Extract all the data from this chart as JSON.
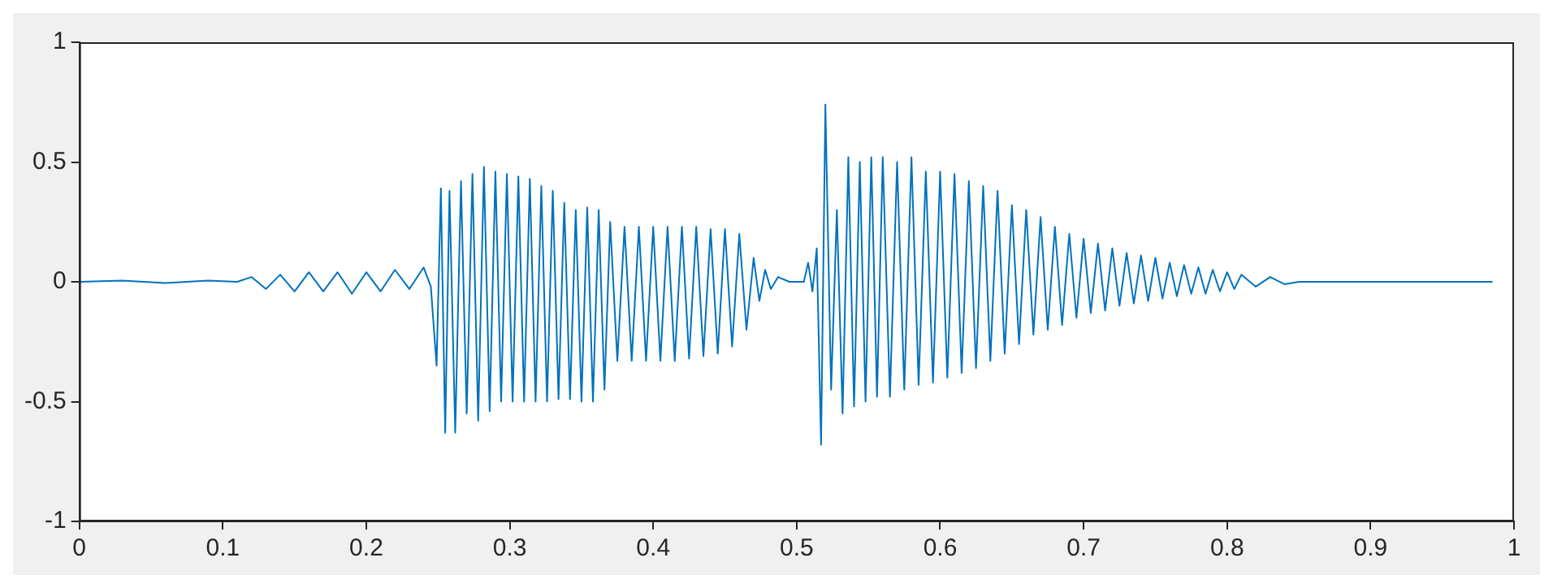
{
  "chart_data": {
    "type": "line",
    "xlim": [
      0,
      1
    ],
    "xticks": [
      0,
      0.1,
      0.2,
      0.3,
      0.4,
      0.5,
      0.6,
      0.7,
      0.8,
      0.9,
      1
    ],
    "ylim": [
      -1,
      1
    ],
    "yticks": [
      -1,
      -0.5,
      0,
      0.5,
      1
    ],
    "grid": false,
    "legend": false,
    "marker": "none",
    "line_style": "solid",
    "series": [
      {
        "color": "#0072bd",
        "x": [
          0,
          0.03,
          0.06,
          0.09,
          0.11,
          0.12,
          0.13,
          0.14,
          0.15,
          0.16,
          0.17,
          0.18,
          0.19,
          0.2,
          0.21,
          0.22,
          0.23,
          0.24,
          0.245,
          0.249,
          0.252,
          0.255,
          0.258,
          0.262,
          0.266,
          0.27,
          0.274,
          0.278,
          0.282,
          0.286,
          0.29,
          0.294,
          0.298,
          0.302,
          0.306,
          0.31,
          0.314,
          0.318,
          0.322,
          0.326,
          0.33,
          0.334,
          0.338,
          0.342,
          0.346,
          0.35,
          0.354,
          0.358,
          0.362,
          0.366,
          0.37,
          0.375,
          0.38,
          0.385,
          0.39,
          0.395,
          0.4,
          0.405,
          0.41,
          0.415,
          0.42,
          0.425,
          0.43,
          0.435,
          0.44,
          0.445,
          0.45,
          0.455,
          0.46,
          0.465,
          0.47,
          0.474,
          0.478,
          0.482,
          0.487,
          0.495,
          0.505,
          0.508,
          0.511,
          0.514,
          0.517,
          0.52,
          0.524,
          0.528,
          0.532,
          0.536,
          0.54,
          0.544,
          0.548,
          0.552,
          0.556,
          0.56,
          0.565,
          0.57,
          0.575,
          0.58,
          0.585,
          0.59,
          0.595,
          0.6,
          0.605,
          0.61,
          0.615,
          0.62,
          0.625,
          0.63,
          0.635,
          0.64,
          0.645,
          0.65,
          0.655,
          0.66,
          0.665,
          0.67,
          0.675,
          0.68,
          0.685,
          0.69,
          0.695,
          0.7,
          0.705,
          0.71,
          0.715,
          0.72,
          0.725,
          0.73,
          0.735,
          0.74,
          0.745,
          0.75,
          0.755,
          0.76,
          0.765,
          0.77,
          0.775,
          0.78,
          0.785,
          0.79,
          0.795,
          0.8,
          0.805,
          0.81,
          0.82,
          0.83,
          0.84,
          0.85,
          0.9,
          0.95,
          0.985
        ],
        "values": [
          0,
          0.005,
          -0.005,
          0.005,
          0,
          0.02,
          -0.03,
          0.03,
          -0.04,
          0.04,
          -0.04,
          0.04,
          -0.05,
          0.04,
          -0.04,
          0.05,
          -0.03,
          0.06,
          -0.02,
          -0.35,
          0.39,
          -0.63,
          0.38,
          -0.63,
          0.42,
          -0.55,
          0.45,
          -0.58,
          0.48,
          -0.54,
          0.46,
          -0.5,
          0.45,
          -0.5,
          0.44,
          -0.5,
          0.43,
          -0.5,
          0.4,
          -0.5,
          0.38,
          -0.49,
          0.33,
          -0.49,
          0.3,
          -0.5,
          0.31,
          -0.5,
          0.3,
          -0.45,
          0.25,
          -0.33,
          0.23,
          -0.33,
          0.23,
          -0.33,
          0.23,
          -0.33,
          0.23,
          -0.33,
          0.23,
          -0.32,
          0.23,
          -0.31,
          0.22,
          -0.3,
          0.22,
          -0.27,
          0.2,
          -0.2,
          0.1,
          -0.08,
          0.05,
          -0.03,
          0.02,
          0,
          0,
          0.08,
          -0.04,
          0.14,
          -0.68,
          0.74,
          -0.45,
          0.3,
          -0.55,
          0.52,
          -0.52,
          0.5,
          -0.5,
          0.52,
          -0.48,
          0.52,
          -0.48,
          0.5,
          -0.45,
          0.52,
          -0.43,
          0.46,
          -0.42,
          0.46,
          -0.4,
          0.45,
          -0.38,
          0.42,
          -0.36,
          0.4,
          -0.33,
          0.38,
          -0.3,
          0.32,
          -0.26,
          0.3,
          -0.22,
          0.27,
          -0.2,
          0.23,
          -0.18,
          0.2,
          -0.15,
          0.18,
          -0.13,
          0.16,
          -0.12,
          0.14,
          -0.1,
          0.12,
          -0.09,
          0.11,
          -0.08,
          0.1,
          -0.07,
          0.08,
          -0.06,
          0.07,
          -0.05,
          0.06,
          -0.05,
          0.05,
          -0.04,
          0.04,
          -0.03,
          0.03,
          -0.02,
          0.02,
          -0.01,
          0,
          0,
          0,
          0
        ]
      }
    ]
  }
}
